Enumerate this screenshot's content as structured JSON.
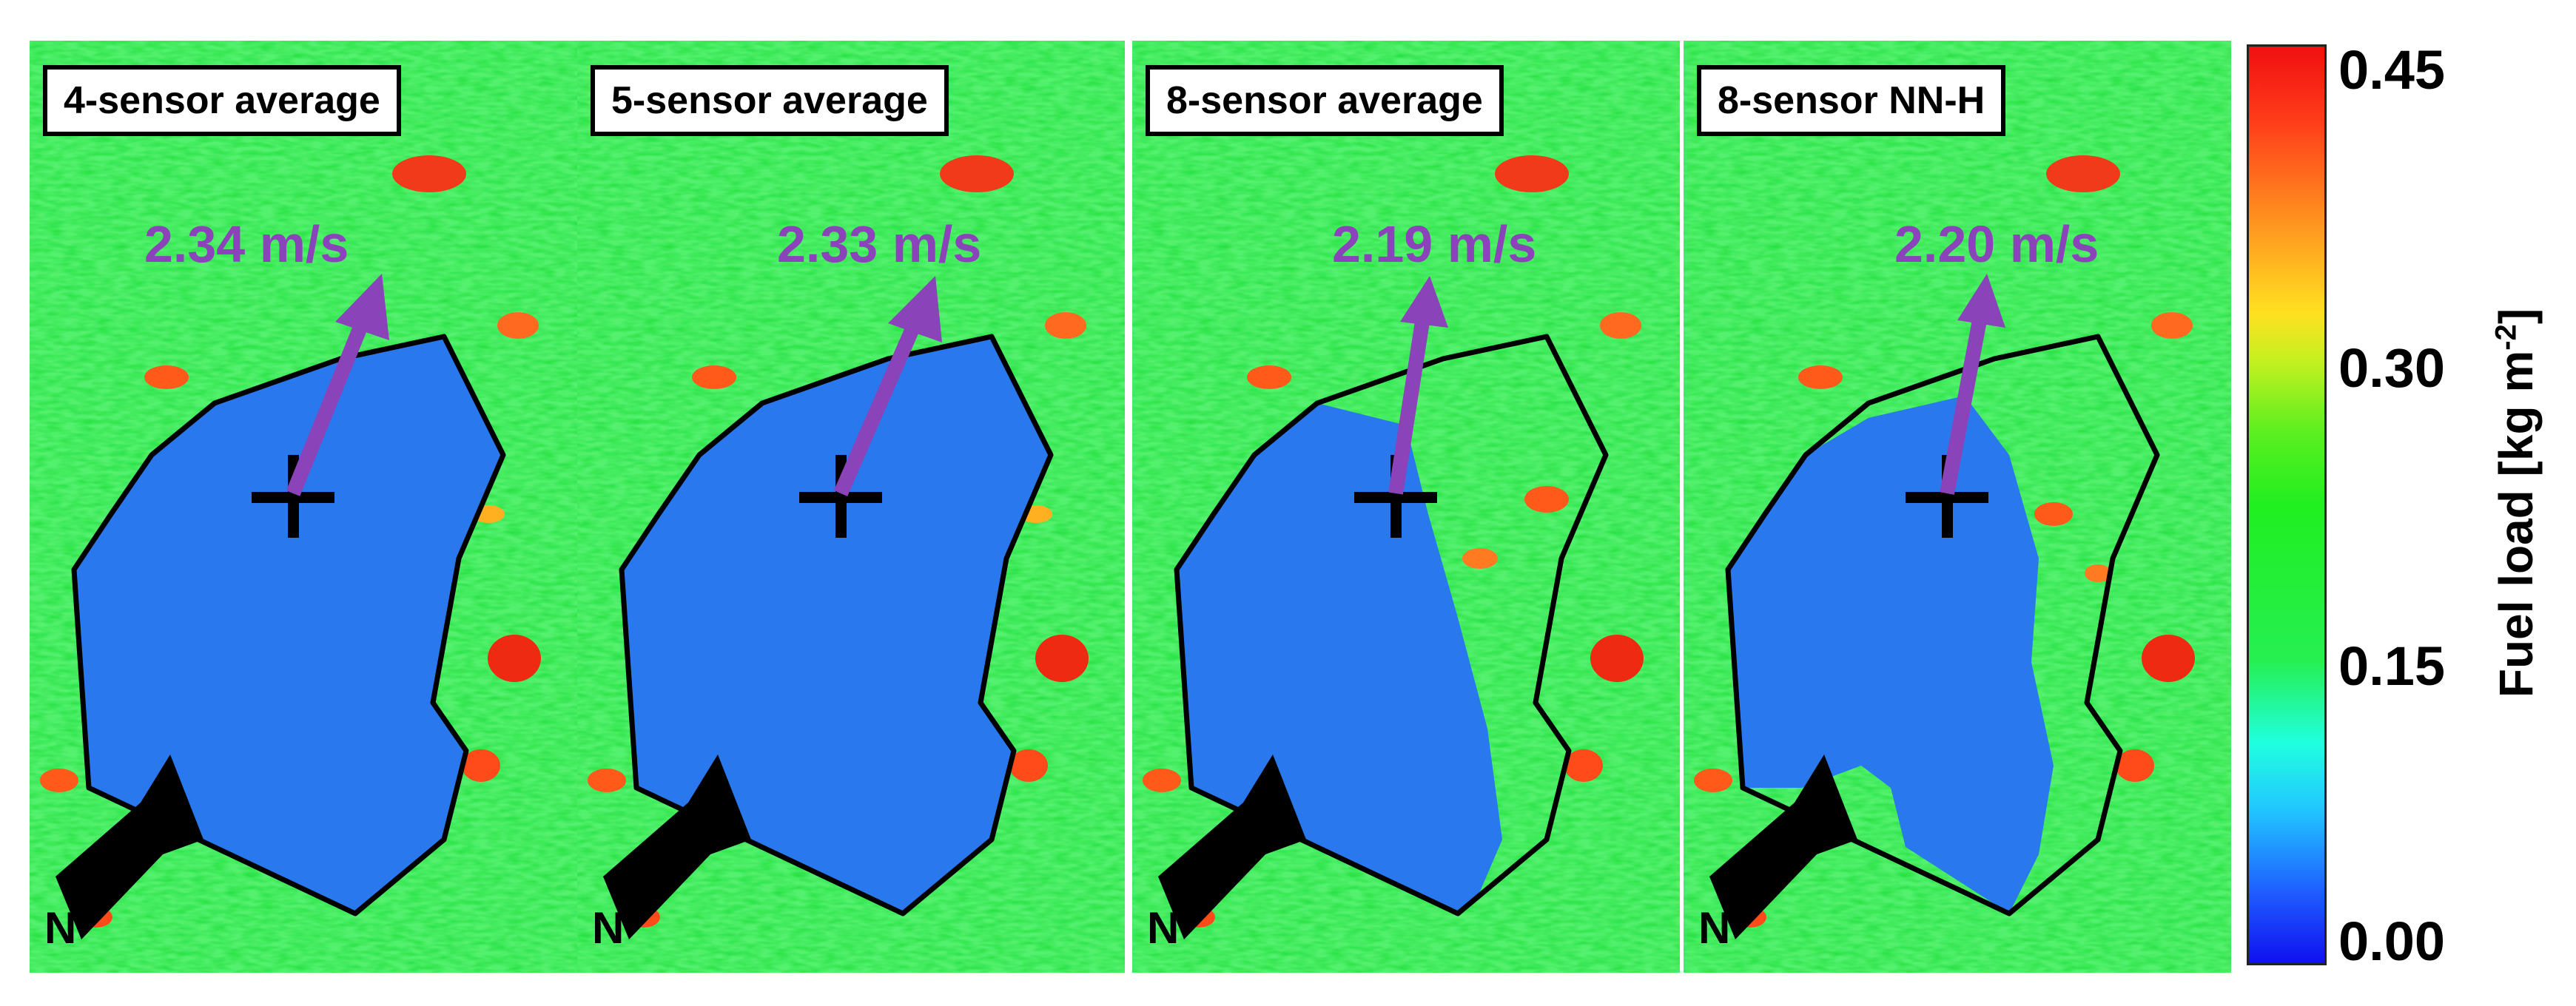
{
  "panels": [
    {
      "label": "4-sensor average",
      "speed": "2.34 m/s",
      "north": "N"
    },
    {
      "label": "5-sensor average",
      "speed": "2.33 m/s",
      "north": "N"
    },
    {
      "label": "8-sensor average",
      "speed": "2.19 m/s",
      "north": "N"
    },
    {
      "label": "8-sensor NN-H",
      "speed": "2.20 m/s",
      "north": "N"
    }
  ],
  "colorbar": {
    "title_main": "Fuel load [kg m",
    "title_exp": "-2",
    "title_end": "]",
    "ticks": [
      "0.45",
      "0.30",
      "0.15",
      "0.00"
    ],
    "colors": {
      "low": "#1010f0",
      "mid": "#20ef20",
      "high": "#f01010"
    }
  },
  "colors": {
    "background": "#24e040",
    "burned": "#2a78ee",
    "arrow": "#8a43b8",
    "outline": "#000000"
  }
}
